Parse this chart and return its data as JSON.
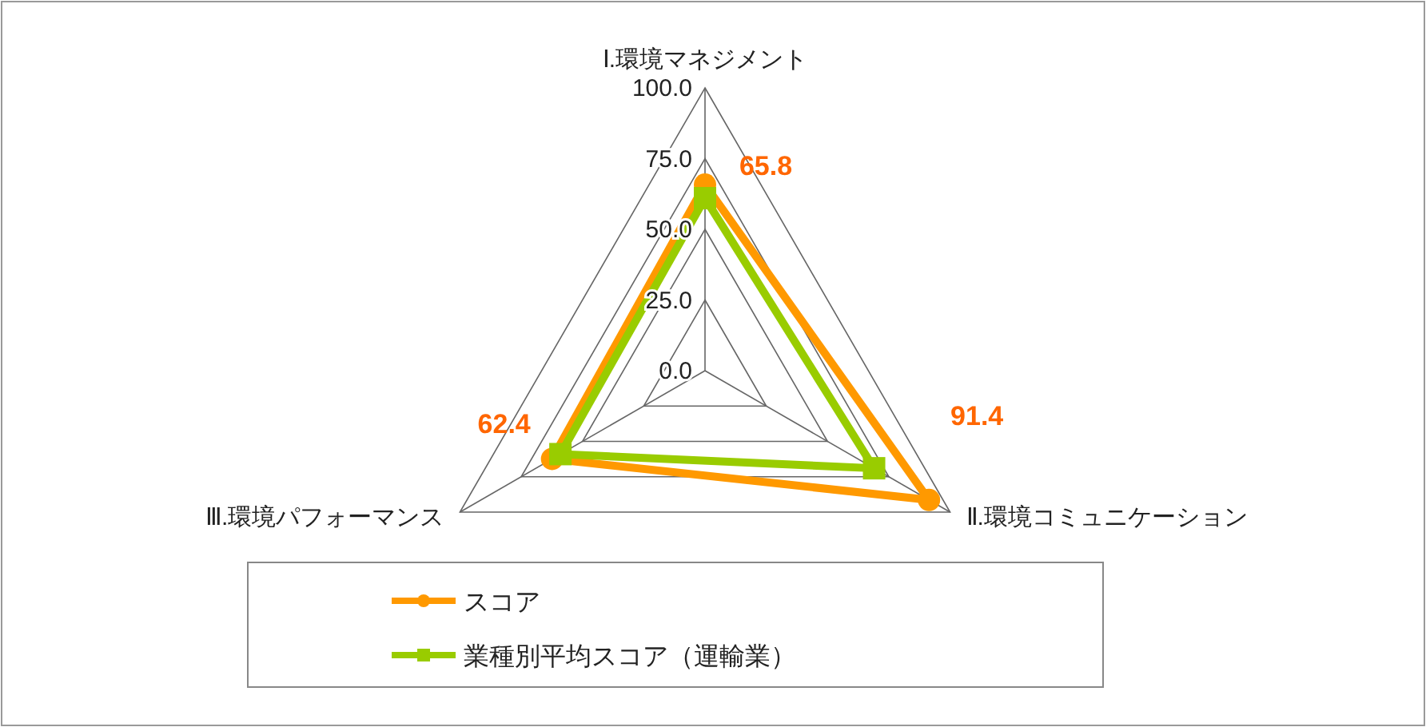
{
  "chart_data": {
    "type": "radar",
    "categories": [
      "Ⅰ.環境マネジメント",
      "Ⅱ.環境コミュニケーション",
      "Ⅲ.環境パフォーマンス"
    ],
    "ylim": [
      0,
      100
    ],
    "yticks": [
      {
        "value": 0,
        "label": "0.0"
      },
      {
        "value": 25,
        "label": "25.0"
      },
      {
        "value": 50,
        "label": "50.0"
      },
      {
        "value": 75,
        "label": "75.0"
      },
      {
        "value": 100,
        "label": "100.0"
      }
    ],
    "grid": true,
    "legend": "bottom",
    "series": [
      {
        "name": "スコア",
        "color": "#ff9900",
        "marker": "circle",
        "values": [
          65.8,
          91.4,
          62.4
        ],
        "value_labels": [
          "65.8",
          "91.4",
          "62.4"
        ]
      },
      {
        "name": "業種別平均スコア（運輸業）",
        "color": "#99cc00",
        "marker": "square",
        "values": [
          61,
          69,
          59
        ]
      }
    ]
  }
}
